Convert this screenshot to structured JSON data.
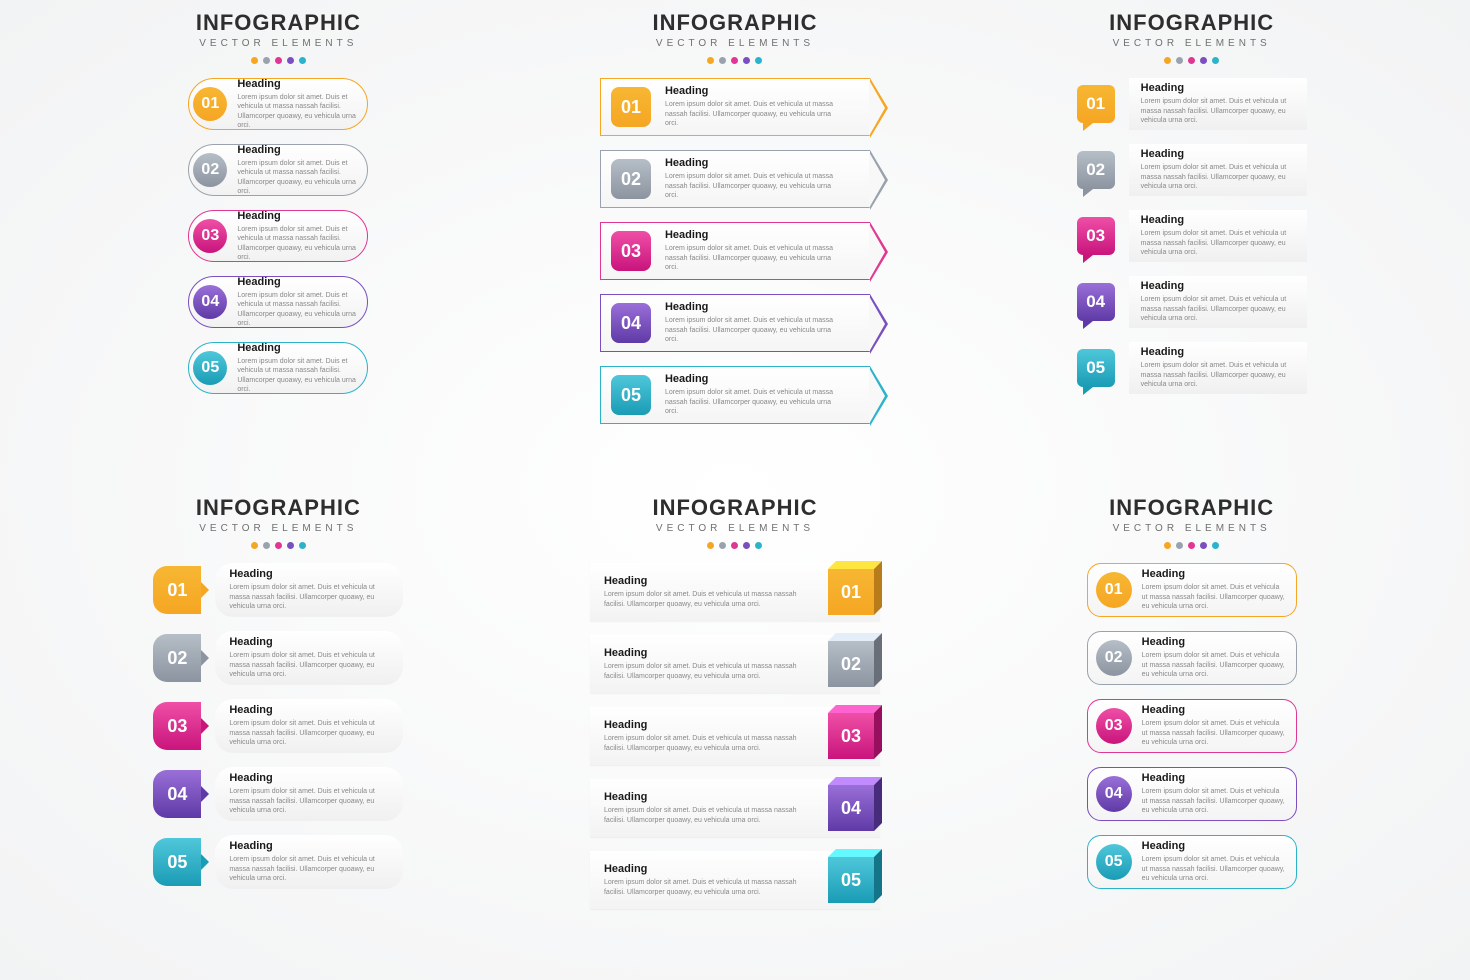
{
  "title": "INFOGRAPHIC",
  "subtitle": "VECTOR ELEMENTS",
  "typography": {
    "title_fontsize": 22,
    "title_weight": 800,
    "title_color": "#2e2e2e",
    "subtitle_fontsize": 10,
    "subtitle_color": "#707070",
    "heading_fontsize": 11,
    "body_fontsize": 7,
    "body_color": "#888888",
    "num_fontsize_small": 16,
    "num_fontsize_large": 18,
    "num_color": "#ffffff"
  },
  "background": "radial-gradient #ffffff → #f2f3f4",
  "palette": [
    {
      "num": "01",
      "base": "#f5a623",
      "grad": [
        "#f7b733",
        "#f5a623"
      ]
    },
    {
      "num": "02",
      "base": "#9aa3ad",
      "grad": [
        "#b6bec7",
        "#8b94a0"
      ]
    },
    {
      "num": "03",
      "base": "#e03694",
      "grad": [
        "#ef4fa6",
        "#c9147c"
      ]
    },
    {
      "num": "04",
      "base": "#7a4fbf",
      "grad": [
        "#9a6fd8",
        "#5f3aa6"
      ]
    },
    {
      "num": "05",
      "base": "#2bb3c9",
      "grad": [
        "#4fc7da",
        "#1a9cb5"
      ]
    }
  ],
  "content": {
    "heading": "Heading",
    "body": "Lorem ipsum dolor sit amet. Duis et vehicula ut massa nassah facilisi. Ullamcorper quoawy, eu vehicula urna orci."
  },
  "layouts": [
    {
      "id": "A",
      "type": "pill-circle-left",
      "item_w": 180,
      "item_h": 52,
      "border": true,
      "num_shape": "circle",
      "num_side": "left",
      "radius": 26
    },
    {
      "id": "B",
      "type": "arrow-banner",
      "item_w": 270,
      "item_h": 58,
      "border": true,
      "num_shape": "rounded-square",
      "num_side": "left",
      "radius": 0,
      "arrow": true
    },
    {
      "id": "C",
      "type": "speech-bubble",
      "item_w": 230,
      "item_h": 52,
      "border": false,
      "num_shape": "speech-square",
      "num_side": "left"
    },
    {
      "id": "D",
      "type": "tag-pointer",
      "item_w": 250,
      "item_h": 54,
      "border": false,
      "num_shape": "tag-rounded",
      "num_side": "left",
      "card_radius": 18
    },
    {
      "id": "E",
      "type": "flat-cube-right",
      "item_w": 290,
      "item_h": 58,
      "border": false,
      "num_shape": "3d-cube",
      "num_side": "right"
    },
    {
      "id": "F",
      "type": "outlined-card-circle",
      "item_w": 210,
      "item_h": 54,
      "border": true,
      "num_shape": "circle",
      "num_side": "left",
      "radius": 14
    }
  ]
}
